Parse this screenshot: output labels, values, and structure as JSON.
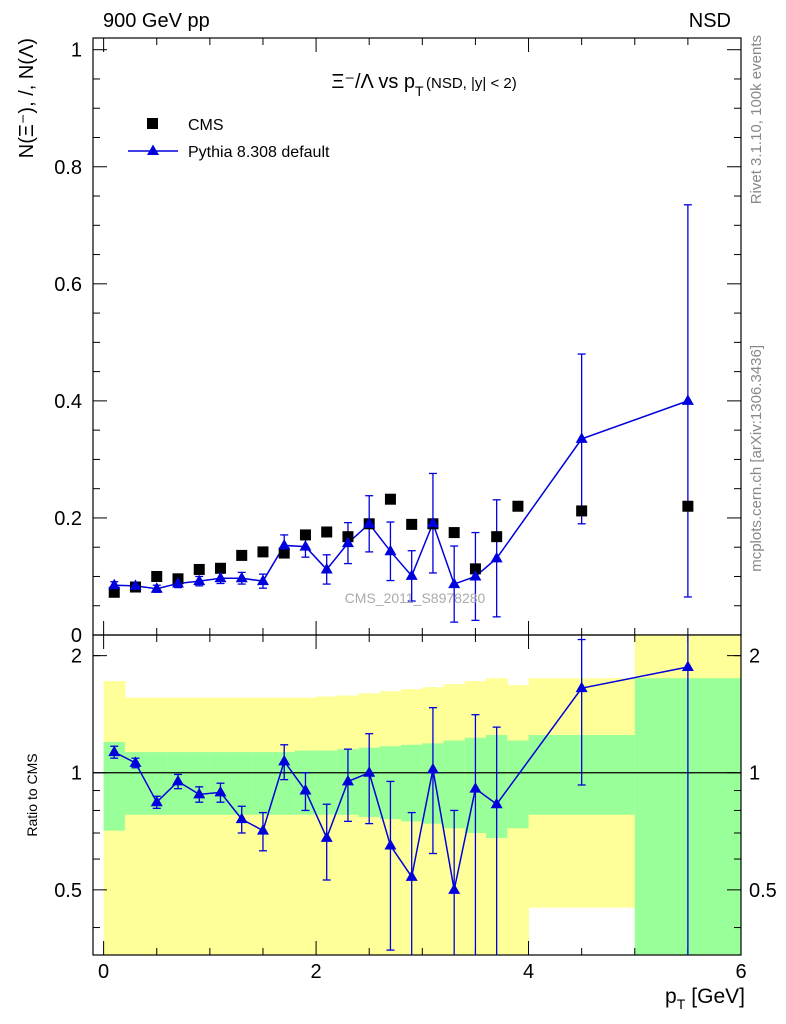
{
  "header": {
    "left": "900 GeV pp",
    "right": "NSD"
  },
  "side_labels": {
    "rivet": "Rivet 3.1.10,  100k events",
    "mcplots": "mcplots.cern.ch [arXiv:1306.3436]"
  },
  "colors": {
    "mc": "#0000dd",
    "data": "#000000",
    "band_inner": "#99ff99",
    "band_outer": "#ffff99"
  },
  "chart_data": [
    {
      "type": "scatter",
      "title_main": "Ξ⁻/Λ  vs p",
      "title_sub": "T",
      "title_extra": "(NSD, |y| < 2)",
      "ylabel": "N(Ξ⁻), /, N(Λ)",
      "watermark": "CMS_2011_S8978280",
      "xlim": [
        -0.1,
        6.0
      ],
      "ylim": [
        0,
        1.02
      ],
      "yticks": [
        0,
        0.2,
        0.4,
        0.6,
        0.8,
        1
      ],
      "ytick_labels": [
        "0",
        "0.2",
        "0.4",
        "0.6",
        "0.8",
        "1"
      ],
      "legend_position": "top-left",
      "series": [
        {
          "name": "CMS",
          "marker": "square",
          "x": [
            0.1,
            0.3,
            0.5,
            0.7,
            0.9,
            1.1,
            1.3,
            1.5,
            1.7,
            1.9,
            2.1,
            2.3,
            2.5,
            2.7,
            2.9,
            3.1,
            3.3,
            3.5,
            3.7,
            3.9,
            4.5,
            5.5
          ],
          "y": [
            0.073,
            0.082,
            0.1,
            0.096,
            0.112,
            0.114,
            0.136,
            0.142,
            0.14,
            0.171,
            0.176,
            0.168,
            0.19,
            0.232,
            0.189,
            0.19,
            0.175,
            0.113,
            0.168,
            0.22,
            0.212,
            0.22
          ]
        },
        {
          "name": "Pythia 8.308 default",
          "marker": "triangle",
          "x": [
            0.1,
            0.3,
            0.5,
            0.7,
            0.9,
            1.1,
            1.3,
            1.5,
            1.7,
            1.9,
            2.1,
            2.3,
            2.5,
            2.7,
            2.9,
            3.1,
            3.3,
            3.5,
            3.7,
            4.5,
            5.5
          ],
          "y": [
            0.085,
            0.084,
            0.079,
            0.088,
            0.092,
            0.097,
            0.097,
            0.092,
            0.153,
            0.151,
            0.112,
            0.157,
            0.19,
            0.143,
            0.101,
            0.191,
            0.087,
            0.1,
            0.131,
            0.335,
            0.4
          ],
          "err": [
            0.006,
            0.006,
            0.006,
            0.007,
            0.008,
            0.009,
            0.01,
            0.012,
            0.018,
            0.018,
            0.025,
            0.035,
            0.048,
            0.05,
            0.043,
            0.085,
            0.065,
            0.075,
            0.1,
            0.145,
            0.335
          ]
        }
      ]
    },
    {
      "type": "scatter",
      "ylabel": "Ratio to CMS",
      "xlabel_main": "p",
      "xlabel_sub": "T",
      "xlabel_unit": "[GeV]",
      "xlim": [
        -0.1,
        6.0
      ],
      "ylim": [
        0.34,
        2.26
      ],
      "xticks": [
        0,
        2,
        4,
        6
      ],
      "xtick_labels": [
        "0",
        "2",
        "4",
        "6"
      ],
      "yticks": [
        0.5,
        1,
        2
      ],
      "ytick_labels": [
        "0.5",
        "1",
        "2"
      ],
      "reference_line": 1,
      "bands": {
        "bin_edges": [
          0.0,
          0.2,
          0.4,
          0.6,
          0.8,
          1.0,
          1.2,
          1.4,
          1.6,
          1.8,
          2.0,
          2.2,
          2.4,
          2.6,
          2.8,
          3.0,
          3.2,
          3.4,
          3.6,
          3.8,
          4.0,
          5.0,
          6.0
        ],
        "inner_low": [
          0.71,
          0.78,
          0.78,
          0.78,
          0.78,
          0.78,
          0.78,
          0.78,
          0.78,
          0.78,
          0.78,
          0.78,
          0.77,
          0.76,
          0.75,
          0.74,
          0.72,
          0.7,
          0.68,
          0.72,
          0.78,
          0.34
        ],
        "inner_high": [
          1.2,
          1.13,
          1.13,
          1.13,
          1.13,
          1.13,
          1.13,
          1.13,
          1.13,
          1.14,
          1.14,
          1.15,
          1.16,
          1.17,
          1.18,
          1.19,
          1.21,
          1.23,
          1.25,
          1.21,
          1.25,
          1.75
        ],
        "outer_low": [
          0.34,
          0.34,
          0.34,
          0.34,
          0.34,
          0.34,
          0.34,
          0.34,
          0.34,
          0.34,
          0.34,
          0.34,
          0.34,
          0.34,
          0.34,
          0.34,
          0.34,
          0.34,
          0.34,
          0.34,
          0.45,
          0.34
        ],
        "outer_high": [
          1.72,
          1.56,
          1.56,
          1.56,
          1.56,
          1.56,
          1.56,
          1.56,
          1.56,
          1.56,
          1.57,
          1.58,
          1.6,
          1.62,
          1.64,
          1.66,
          1.69,
          1.72,
          1.75,
          1.68,
          1.75,
          2.26
        ]
      },
      "series": [
        {
          "name": "Pythia 8.308 default",
          "marker": "triangle",
          "x": [
            0.1,
            0.3,
            0.5,
            0.7,
            0.9,
            1.1,
            1.3,
            1.5,
            1.7,
            1.9,
            2.1,
            2.3,
            2.5,
            2.7,
            2.9,
            3.1,
            3.3,
            3.5,
            3.7,
            4.5,
            5.5
          ],
          "y": [
            1.13,
            1.06,
            0.84,
            0.95,
            0.88,
            0.89,
            0.76,
            0.71,
            1.07,
            0.9,
            0.68,
            0.95,
            1.0,
            0.65,
            0.54,
            1.02,
            0.5,
            0.91,
            0.83,
            1.65,
            1.87
          ],
          "err_low": [
            0.04,
            0.03,
            0.03,
            0.04,
            0.04,
            0.05,
            0.06,
            0.08,
            0.11,
            0.1,
            0.15,
            0.2,
            0.26,
            0.3,
            0.3,
            0.4,
            0.3,
            0.6,
            0.6,
            0.72,
            1.6
          ],
          "err_high": [
            0.04,
            0.03,
            0.03,
            0.04,
            0.04,
            0.05,
            0.06,
            0.08,
            0.11,
            0.1,
            0.15,
            0.2,
            0.26,
            0.3,
            0.25,
            0.45,
            0.3,
            0.5,
            0.48,
            0.55,
            2.0
          ]
        }
      ]
    }
  ]
}
